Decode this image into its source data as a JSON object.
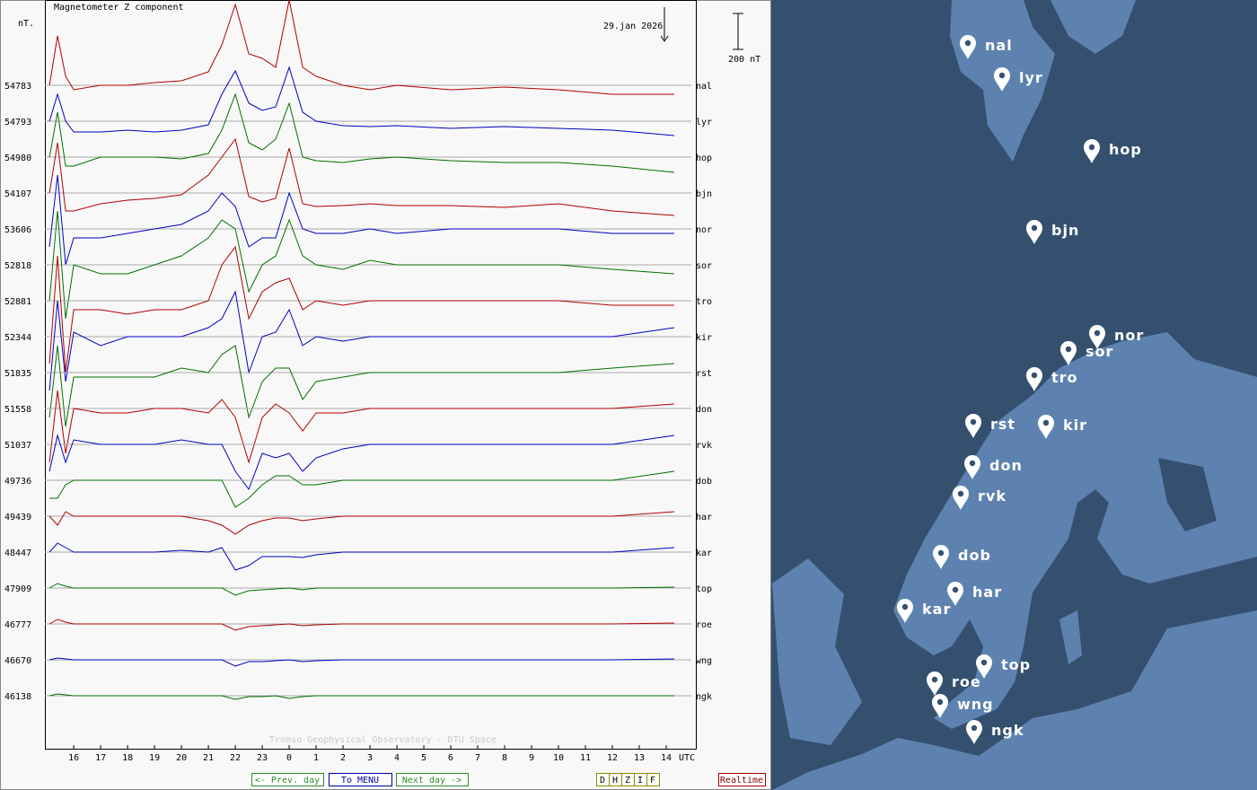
{
  "chart_data": {
    "type": "line",
    "title": "Magnetometer Z component",
    "y_unit": "nT.",
    "date": "29.jan 2026",
    "scale_bar": {
      "value": 200,
      "label": "200 nT"
    },
    "x_unit": "UTC",
    "credit": "Tromso Geophysical Observatory - DTU Space",
    "x": [
      15.1,
      15.4,
      15.7,
      16,
      17,
      18,
      19,
      20,
      21,
      21.5,
      22,
      22.5,
      23,
      23.5,
      24,
      24.5,
      25,
      26,
      27,
      28,
      30,
      32,
      34,
      36,
      38.3
    ],
    "xlim": [
      14.93,
      39.1
    ],
    "xticks": [
      16,
      17,
      18,
      19,
      20,
      21,
      22,
      23,
      {
        "value": 24,
        "label": "0"
      },
      {
        "value": 25,
        "label": "1"
      },
      {
        "value": 26,
        "label": "2"
      },
      {
        "value": 27,
        "label": "3"
      },
      {
        "value": 28,
        "label": "4"
      },
      {
        "value": 29,
        "label": "5"
      },
      {
        "value": 30,
        "label": "6"
      },
      {
        "value": 31,
        "label": "7"
      },
      {
        "value": 32,
        "label": "8"
      },
      {
        "value": 33,
        "label": "9"
      },
      {
        "value": 34,
        "label": "10"
      },
      {
        "value": 35,
        "label": "11"
      },
      {
        "value": 36,
        "label": "12"
      },
      {
        "value": 37,
        "label": "13"
      },
      {
        "value": 38,
        "label": "14"
      }
    ],
    "series": [
      {
        "name": "nal",
        "color": "#b00000",
        "baseline": 54783,
        "values": [
          0,
          275,
          50,
          -25,
          0,
          0,
          15,
          25,
          75,
          225,
          450,
          175,
          150,
          100,
          475,
          100,
          50,
          0,
          -25,
          0,
          -25,
          -10,
          -25,
          -50,
          -50
        ]
      },
      {
        "name": "lyr",
        "color": "#0000c0",
        "baseline": 54793,
        "values": [
          0,
          150,
          0,
          -60,
          -60,
          -50,
          -60,
          -50,
          -20,
          150,
          280,
          100,
          60,
          80,
          300,
          50,
          0,
          -25,
          -30,
          -25,
          -40,
          -30,
          -40,
          -50,
          -80
        ]
      },
      {
        "name": "hop",
        "color": "#007000",
        "baseline": 54980,
        "values": [
          0,
          250,
          -50,
          -50,
          0,
          0,
          0,
          -10,
          20,
          150,
          350,
          80,
          40,
          100,
          300,
          0,
          -20,
          -30,
          -10,
          0,
          -20,
          -30,
          -30,
          -50,
          -85
        ]
      },
      {
        "name": "bjn",
        "color": "#b00000",
        "baseline": 54107,
        "values": [
          0,
          280,
          -100,
          -100,
          -60,
          -40,
          -30,
          -10,
          100,
          200,
          300,
          -20,
          -50,
          -30,
          250,
          -60,
          -75,
          -70,
          -60,
          -70,
          -70,
          -80,
          -60,
          -100,
          -125
        ]
      },
      {
        "name": "nor",
        "color": "#0000c0",
        "baseline": 53606,
        "values": [
          -100,
          300,
          -200,
          -50,
          -50,
          -25,
          0,
          25,
          100,
          200,
          125,
          -100,
          -50,
          -50,
          200,
          0,
          -25,
          -25,
          0,
          -25,
          0,
          0,
          0,
          -25,
          -25
        ]
      },
      {
        "name": "sor",
        "color": "#007000",
        "baseline": 52818,
        "values": [
          -200,
          300,
          -300,
          0,
          -50,
          -50,
          0,
          50,
          150,
          250,
          200,
          -150,
          0,
          50,
          250,
          50,
          0,
          -25,
          25,
          0,
          0,
          0,
          0,
          -25,
          -50
        ]
      },
      {
        "name": "tro",
        "color": "#b00000",
        "baseline": 52881,
        "values": [
          -350,
          250,
          -400,
          -50,
          -50,
          -75,
          -50,
          -50,
          0,
          200,
          300,
          -100,
          50,
          100,
          125,
          -50,
          0,
          -25,
          0,
          0,
          0,
          0,
          0,
          -25,
          -25
        ]
      },
      {
        "name": "kir",
        "color": "#0000c0",
        "baseline": 52344,
        "values": [
          -300,
          200,
          -250,
          25,
          -50,
          0,
          0,
          0,
          50,
          100,
          250,
          -200,
          0,
          25,
          150,
          -50,
          0,
          -25,
          0,
          0,
          0,
          0,
          0,
          0,
          50
        ]
      },
      {
        "name": "rst",
        "color": "#007000",
        "baseline": 51835,
        "values": [
          -250,
          150,
          -300,
          -25,
          -25,
          -25,
          -25,
          25,
          0,
          100,
          150,
          -250,
          -50,
          25,
          25,
          -150,
          -50,
          -25,
          0,
          0,
          0,
          0,
          0,
          25,
          50
        ]
      },
      {
        "name": "don",
        "color": "#b00000",
        "baseline": 51558,
        "values": [
          -300,
          100,
          -250,
          0,
          -25,
          -25,
          0,
          0,
          -25,
          50,
          -50,
          -300,
          -50,
          25,
          -25,
          -125,
          -25,
          -25,
          0,
          0,
          0,
          0,
          0,
          0,
          25
        ]
      },
      {
        "name": "rvk",
        "color": "#0000c0",
        "baseline": 51037,
        "values": [
          -150,
          50,
          -100,
          25,
          0,
          0,
          0,
          25,
          0,
          0,
          -150,
          -250,
          -50,
          -75,
          -50,
          -150,
          -75,
          -25,
          0,
          0,
          0,
          0,
          0,
          0,
          50
        ]
      },
      {
        "name": "dob",
        "color": "#007000",
        "baseline": 49736,
        "values": [
          -100,
          -100,
          -25,
          0,
          0,
          0,
          0,
          0,
          0,
          0,
          -150,
          -100,
          -25,
          25,
          25,
          -25,
          -25,
          0,
          0,
          0,
          0,
          0,
          0,
          0,
          50
        ]
      },
      {
        "name": "har",
        "color": "#b00000",
        "baseline": 49439,
        "values": [
          0,
          -50,
          25,
          0,
          0,
          0,
          0,
          0,
          -25,
          -50,
          -100,
          -50,
          -25,
          -10,
          -10,
          -25,
          -15,
          0,
          0,
          0,
          0,
          0,
          0,
          0,
          25
        ]
      },
      {
        "name": "kar",
        "color": "#0000c0",
        "baseline": 48447,
        "values": [
          0,
          50,
          25,
          0,
          0,
          0,
          0,
          10,
          0,
          25,
          -100,
          -75,
          -25,
          -25,
          -25,
          -30,
          -15,
          0,
          0,
          0,
          0,
          0,
          0,
          0,
          25
        ]
      },
      {
        "name": "top",
        "color": "#007000",
        "baseline": 47909,
        "values": [
          0,
          25,
          10,
          0,
          0,
          0,
          0,
          0,
          0,
          0,
          -40,
          -15,
          -10,
          -5,
          0,
          -10,
          0,
          0,
          0,
          0,
          0,
          0,
          0,
          0,
          5
        ]
      },
      {
        "name": "roe",
        "color": "#b00000",
        "baseline": 46777,
        "values": [
          0,
          25,
          10,
          0,
          0,
          0,
          0,
          0,
          0,
          0,
          -35,
          -15,
          -10,
          -5,
          0,
          -10,
          -5,
          0,
          0,
          0,
          0,
          0,
          0,
          0,
          5
        ]
      },
      {
        "name": "wng",
        "color": "#0000c0",
        "baseline": 46670,
        "values": [
          0,
          10,
          5,
          0,
          0,
          0,
          0,
          0,
          0,
          0,
          -35,
          -10,
          -10,
          -5,
          0,
          -10,
          -5,
          0,
          0,
          0,
          0,
          0,
          0,
          0,
          5
        ]
      },
      {
        "name": "ngk",
        "color": "#007000",
        "baseline": 46138,
        "values": [
          0,
          10,
          5,
          0,
          0,
          0,
          0,
          0,
          0,
          0,
          -20,
          -5,
          -5,
          0,
          -15,
          -5,
          0,
          0,
          0,
          0,
          0,
          0,
          0,
          0,
          0
        ]
      }
    ]
  },
  "navigation": {
    "buttons": [
      "<- Prev. day",
      "To MENU",
      "Next day ->"
    ],
    "components": [
      "D",
      "H",
      "Z",
      "I",
      "F"
    ],
    "realtime": "Realtime"
  },
  "map": {
    "stations": [
      "nal",
      "lyr",
      "hop",
      "bjn",
      "nor",
      "sor",
      "tro",
      "rst",
      "kir",
      "don",
      "rvk",
      "dob",
      "har",
      "kar",
      "top",
      "roe",
      "wng",
      "ngk"
    ]
  }
}
